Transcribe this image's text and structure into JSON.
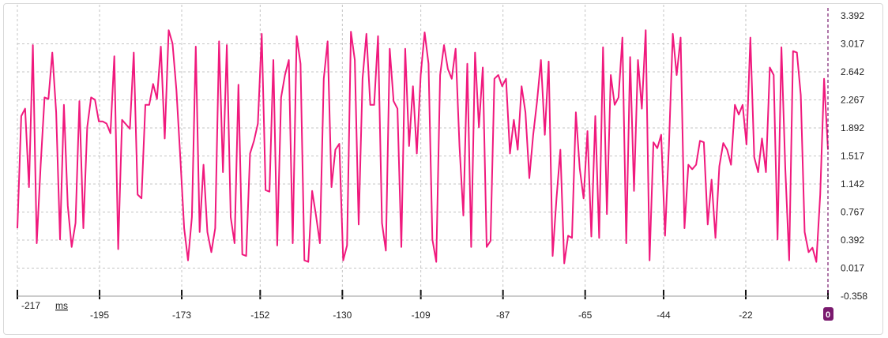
{
  "chart_data": {
    "type": "line",
    "x_unit": "ms",
    "xlim": [
      -217,
      0
    ],
    "ylim": [
      -0.358,
      3.392
    ],
    "y_ticks": [
      "3.392",
      "3.017",
      "2.642",
      "2.267",
      "1.892",
      "1.517",
      "1.142",
      "0.767",
      "0.392",
      "0.017",
      "-0.358"
    ],
    "x_ticks": [
      "-217",
      "-195",
      "-173",
      "-152",
      "-130",
      "-109",
      "-87",
      "-65",
      "-44",
      "-22",
      "0"
    ],
    "grid": true,
    "line_color": "#f0197d",
    "now_marker_color": "#7a1a6e",
    "series": [
      {
        "values": [
          0.55,
          2.05,
          2.15,
          1.1,
          3.0,
          0.35,
          1.4,
          2.3,
          2.28,
          2.9,
          2.1,
          0.4,
          2.2,
          0.85,
          0.3,
          0.62,
          2.25,
          0.55,
          1.9,
          2.3,
          2.27,
          1.98,
          1.98,
          1.95,
          1.82,
          2.85,
          0.27,
          2.0,
          1.94,
          1.88,
          2.9,
          1.0,
          0.95,
          2.2,
          2.2,
          2.48,
          2.28,
          2.98,
          1.75,
          3.2,
          3.02,
          2.4,
          1.5,
          0.55,
          0.12,
          0.7,
          2.98,
          0.5,
          1.4,
          0.5,
          0.23,
          0.55,
          3.05,
          1.3,
          3.0,
          0.7,
          0.35,
          2.47,
          0.2,
          0.18,
          1.55,
          1.72,
          1.95,
          3.15,
          1.06,
          1.04,
          2.8,
          0.32,
          2.3,
          2.6,
          2.8,
          0.35,
          3.12,
          2.75,
          0.12,
          0.1,
          1.05,
          0.72,
          0.35,
          2.55,
          3.05,
          1.1,
          1.6,
          1.68,
          0.12,
          0.32,
          3.18,
          2.8,
          0.6,
          2.55,
          3.15,
          2.2,
          2.2,
          3.12,
          0.62,
          0.25,
          2.95,
          2.25,
          2.15,
          0.3,
          2.95,
          1.65,
          2.45,
          1.55,
          2.6,
          3.17,
          2.75,
          0.4,
          0.1,
          2.6,
          3.0,
          2.68,
          2.55,
          2.95,
          1.65,
          0.72,
          2.75,
          0.3,
          2.9,
          1.9,
          2.7,
          0.3,
          0.38,
          2.55,
          2.6,
          2.45,
          2.55,
          1.55,
          2.0,
          1.6,
          2.45,
          2.1,
          1.22,
          1.8,
          2.25,
          2.8,
          1.8,
          2.78,
          0.18,
          0.95,
          1.6,
          0.08,
          0.45,
          0.42,
          2.1,
          1.35,
          0.95,
          1.85,
          0.44,
          2.05,
          0.42,
          2.97,
          0.74,
          2.6,
          2.2,
          2.3,
          3.1,
          0.35,
          2.84,
          1.05,
          2.8,
          2.15,
          3.2,
          0.12,
          1.7,
          1.62,
          1.8,
          0.45,
          1.65,
          3.15,
          2.6,
          3.1,
          0.55,
          1.4,
          1.34,
          1.4,
          1.72,
          1.7,
          0.6,
          1.2,
          0.42,
          1.38,
          1.69,
          1.6,
          1.4,
          2.2,
          2.07,
          2.2,
          1.67,
          3.1,
          1.5,
          1.3,
          1.75,
          1.3,
          2.7,
          2.6,
          0.4,
          2.97,
          1.35,
          0.12,
          2.92,
          2.9,
          2.33,
          0.5,
          0.23,
          0.29,
          0.1,
          1.0,
          2.55,
          1.6
        ]
      }
    ]
  }
}
